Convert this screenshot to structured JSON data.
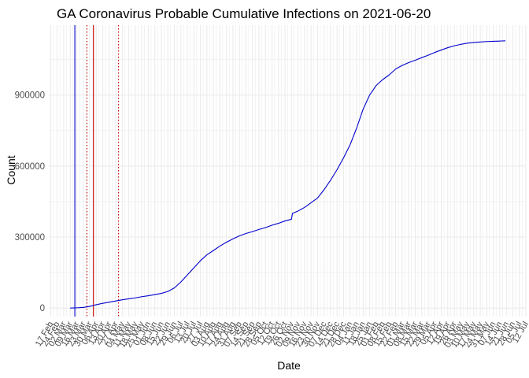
{
  "chart_data": {
    "type": "line",
    "title": "GA Coronavirus Probable Cumulative Infections on 2021-06-20",
    "xlabel": "Date",
    "ylabel": "Count",
    "grid": true,
    "legend": "none",
    "x_range": [
      "2020-02-15",
      "2021-07-12"
    ],
    "ylim": [
      -36000,
      1195000
    ],
    "y_ticks": [
      0,
      300000,
      600000,
      900000
    ],
    "y_tick_labels": [
      "0",
      "300000",
      "600000",
      "900000"
    ],
    "x_tick_labels": [
      "17 Feb",
      "24 Feb",
      "02 Mar",
      "09 Mar",
      "16 Mar",
      "23 Mar",
      "30 Mar",
      "06 Apr",
      "13 Apr",
      "20 Apr",
      "27 Apr",
      "04 May",
      "11 May",
      "18 May",
      "25 May",
      "01 Jun",
      "08 Jun",
      "15 Jun",
      "22 Jun",
      "29 Jun",
      "06 Jul",
      "13 Jul",
      "20 Jul",
      "27 Jul",
      "03 Aug",
      "10 Aug",
      "17 Aug",
      "24 Aug",
      "31 Aug",
      "07 Sep",
      "14 Sep",
      "21 Sep",
      "28 Sep",
      "05 Oct",
      "12 Oct",
      "19 Oct",
      "26 Oct",
      "02 Nov",
      "09 Nov",
      "16 Nov",
      "23 Nov",
      "30 Nov",
      "07 Dec",
      "14 Dec",
      "21 Dec",
      "28 Dec",
      "04 Jan",
      "11 Jan",
      "18 Jan",
      "25 Jan",
      "01 Feb",
      "08 Feb",
      "15 Feb",
      "22 Feb",
      "01 Mar",
      "08 Mar",
      "15 Mar",
      "22 Mar",
      "29 Mar",
      "05 Apr",
      "12 Apr",
      "19 Apr",
      "26 Apr",
      "03 May",
      "10 May",
      "17 May",
      "24 May",
      "31 May",
      "07 Jun",
      "14 Jun",
      "21 Jun",
      "28 Jun",
      "05 Jul",
      "12 Jul"
    ],
    "x_tick_start": "2020-02-17",
    "x_tick_step_days": 7,
    "reference_lines": [
      {
        "date": "2020-03-14",
        "color": "#0000cc",
        "style": "solid"
      },
      {
        "date": "2020-03-27",
        "color": "#cc0000",
        "style": "dotted"
      },
      {
        "date": "2020-04-03",
        "color": "#cc0000",
        "style": "solid"
      },
      {
        "date": "2020-04-30",
        "color": "#cc0000",
        "style": "dotted"
      }
    ],
    "series": [
      {
        "color": "#0000cc",
        "x": [
          "2020-03-09",
          "2020-03-16",
          "2020-03-23",
          "2020-03-30",
          "2020-04-06",
          "2020-04-13",
          "2020-04-20",
          "2020-04-27",
          "2020-05-04",
          "2020-05-11",
          "2020-05-18",
          "2020-05-25",
          "2020-06-01",
          "2020-06-08",
          "2020-06-15",
          "2020-06-22",
          "2020-06-29",
          "2020-07-06",
          "2020-07-13",
          "2020-07-20",
          "2020-07-27",
          "2020-08-03",
          "2020-08-10",
          "2020-08-17",
          "2020-08-24",
          "2020-08-31",
          "2020-09-07",
          "2020-09-14",
          "2020-09-21",
          "2020-09-28",
          "2020-10-05",
          "2020-10-12",
          "2020-10-19",
          "2020-10-26",
          "2020-11-02",
          "2020-11-03",
          "2020-11-09",
          "2020-11-16",
          "2020-11-23",
          "2020-11-30",
          "2020-12-07",
          "2020-12-14",
          "2020-12-21",
          "2020-12-28",
          "2021-01-04",
          "2021-01-11",
          "2021-01-18",
          "2021-01-25",
          "2021-02-01",
          "2021-02-08",
          "2021-02-15",
          "2021-02-22",
          "2021-03-01",
          "2021-03-08",
          "2021-03-15",
          "2021-03-22",
          "2021-03-29",
          "2021-04-05",
          "2021-04-12",
          "2021-04-19",
          "2021-04-26",
          "2021-05-03",
          "2021-05-10",
          "2021-05-17",
          "2021-05-24",
          "2021-05-31",
          "2021-06-07",
          "2021-06-14",
          "2021-06-20"
        ],
        "y": [
          0,
          1000,
          2500,
          7000,
          14000,
          20000,
          25000,
          30000,
          35000,
          39000,
          43000,
          48000,
          52000,
          57000,
          62000,
          70000,
          85000,
          110000,
          140000,
          170000,
          200000,
          225000,
          243000,
          262000,
          278000,
          292000,
          305000,
          315000,
          323000,
          332000,
          340000,
          350000,
          358000,
          368000,
          375000,
          400000,
          410000,
          425000,
          445000,
          465000,
          500000,
          540000,
          585000,
          635000,
          690000,
          760000,
          840000,
          900000,
          940000,
          965000,
          985000,
          1010000,
          1025000,
          1037000,
          1047000,
          1058000,
          1068000,
          1080000,
          1090000,
          1100000,
          1108000,
          1114000,
          1119000,
          1122000,
          1124000,
          1126000,
          1127000,
          1128000,
          1129000
        ]
      }
    ]
  }
}
